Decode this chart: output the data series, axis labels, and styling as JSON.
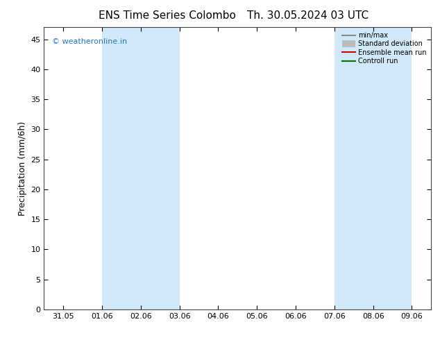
{
  "title_left": "ENS Time Series Colombo",
  "title_right": "Th. 30.05.2024 03 UTC",
  "ylabel": "Precipitation (mm/6h)",
  "watermark": "© weatheronline.in",
  "ylim": [
    0,
    47
  ],
  "yticks": [
    0,
    5,
    10,
    15,
    20,
    25,
    30,
    35,
    40,
    45
  ],
  "xtick_labels": [
    "31.05",
    "01.06",
    "02.06",
    "03.06",
    "04.06",
    "05.06",
    "06.06",
    "07.06",
    "08.06",
    "09.06"
  ],
  "shaded_regions": [
    {
      "xstart": 1.0,
      "xend": 3.0
    },
    {
      "xstart": 7.0,
      "xend": 9.0
    }
  ],
  "shade_color": "#d0e8f8",
  "background_color": "#ffffff",
  "legend_items": [
    {
      "label": "min/max",
      "color": "#888888",
      "lw": 1.5
    },
    {
      "label": "Standard deviation",
      "color": "#bbbbbb",
      "lw": 7
    },
    {
      "label": "Ensemble mean run",
      "color": "#cc0000",
      "lw": 1.5
    },
    {
      "label": "Controll run",
      "color": "#007700",
      "lw": 1.5
    }
  ],
  "title_fontsize": 11,
  "axis_label_fontsize": 9,
  "tick_fontsize": 8,
  "watermark_fontsize": 8,
  "watermark_color": "#2277cc",
  "border_color": "#444444"
}
